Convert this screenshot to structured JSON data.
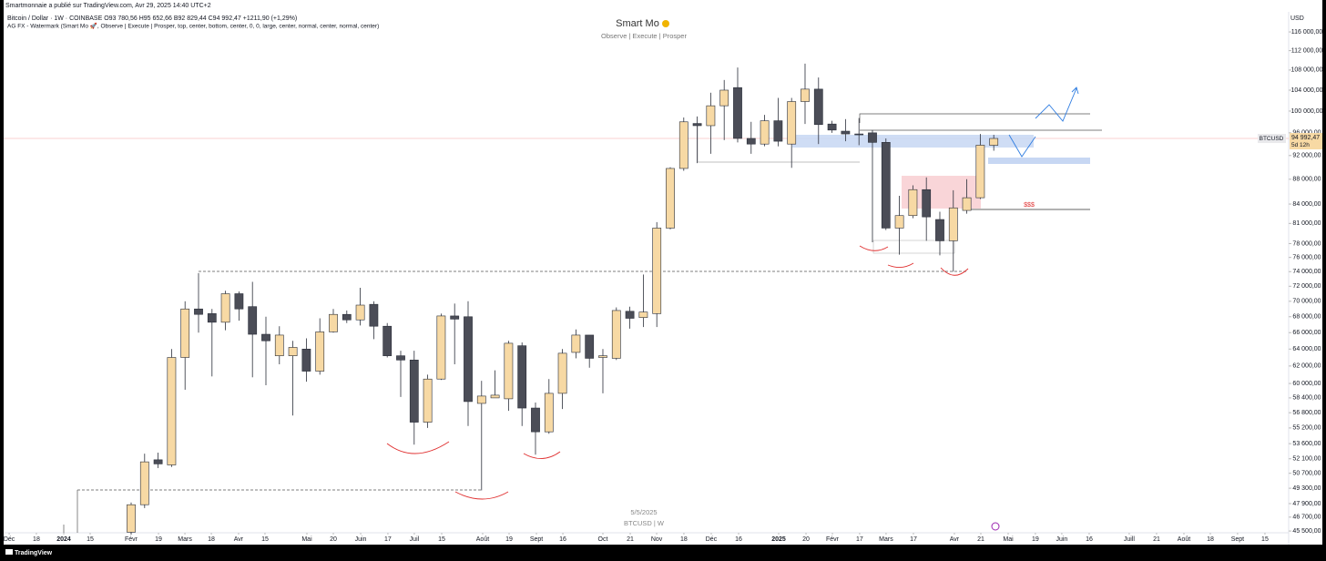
{
  "header": {
    "published": "Smartmonnaie a publié sur TradingView.com, Avr 29, 2025 14:40 UTC+2",
    "legend": "Bitcoin / Dollar · 1W · COINBASE   O93 780,56  H95 652,66  B92 829,44  C94 992,47  +1211,90 (+1,29%)",
    "indicator": "AG FX - Watermark (Smart Mo 🚀, Observe | Execute | Prosper, top, center, bottom, center, 0, 0, large, center, normal, center, normal, center)"
  },
  "watermark": {
    "title": "Smart Mo",
    "subtitle": "Observe |  Execute |  Prosper",
    "date": "5/5/2025",
    "symbol": "BTCUSD | W"
  },
  "annotation": "$$$",
  "brand": "TradingView",
  "chart_data": {
    "type": "candlestick",
    "currency": "USD",
    "log_scale": true,
    "grid": false,
    "up_color": "#f7d9a4",
    "down_color": "#4b4d57",
    "x": [
      0,
      1,
      2,
      3,
      4,
      5,
      6,
      7,
      8,
      9,
      10,
      11,
      12,
      13,
      14,
      15,
      16,
      17,
      18,
      19,
      20,
      21,
      22,
      23,
      24,
      25,
      26,
      27,
      28,
      29,
      30,
      31,
      32,
      33,
      34,
      35,
      36,
      37,
      38,
      39,
      40,
      41,
      42,
      43,
      44,
      45,
      46,
      47,
      48,
      49,
      50,
      51,
      52,
      53,
      54,
      55,
      56,
      57,
      58,
      59,
      60,
      61,
      62,
      63,
      64
    ],
    "open": [
      45400,
      47800,
      52000,
      51500,
      63000,
      69000,
      68400,
      67300,
      71000,
      69300,
      65800,
      63200,
      63200,
      64000,
      61400,
      66100,
      68300,
      67600,
      69600,
      66800,
      63200,
      62700,
      55800,
      60500,
      68100,
      68000,
      57800,
      58400,
      58300,
      64400,
      57300,
      54800,
      58900,
      63600,
      65700,
      63000,
      62900,
      68700,
      67900,
      68400,
      80300,
      89800,
      97700,
      97300,
      101000,
      104500,
      95000,
      94000,
      98200,
      94000,
      101800,
      104200,
      97600,
      96300,
      95800,
      96000,
      94300,
      80300,
      82200,
      86300,
      81600,
      78400,
      83000,
      85000,
      93780.56
    ],
    "high": [
      48000,
      52600,
      52700,
      64000,
      70000,
      73800,
      69000,
      71400,
      71300,
      72600,
      68000,
      66800,
      65000,
      65300,
      67800,
      69000,
      68800,
      71800,
      70000,
      67200,
      63800,
      63800,
      61000,
      68400,
      69700,
      70000,
      60300,
      61500,
      65000,
      64800,
      57900,
      60500,
      64000,
      66400,
      65700,
      64000,
      69200,
      69300,
      73600,
      81200,
      90000,
      98800,
      99000,
      103500,
      106000,
      108500,
      98000,
      99300,
      102500,
      102500,
      109300,
      106500,
      98200,
      98500,
      98700,
      96500,
      95000,
      85300,
      87000,
      88300,
      82800,
      86200,
      88000,
      95800,
      95652.66
    ],
    "low": [
      45200,
      47500,
      51200,
      51300,
      59300,
      66000,
      60800,
      66300,
      67500,
      60700,
      59800,
      62200,
      56500,
      60200,
      61000,
      66000,
      67200,
      66900,
      65200,
      63000,
      58500,
      53500,
      55200,
      60400,
      62200,
      55400,
      49100,
      58400,
      57000,
      55400,
      52500,
      54600,
      57200,
      62900,
      61800,
      58900,
      62700,
      66500,
      66700,
      66700,
      80100,
      89400,
      90700,
      92300,
      94700,
      94300,
      92300,
      93600,
      93600,
      89900,
      97600,
      94000,
      96000,
      94500,
      93800,
      78200,
      80000,
      76400,
      81800,
      78400,
      76300,
      74000,
      82500,
      84800,
      92829.44
    ],
    "close": [
      47800,
      51800,
      51600,
      63000,
      69000,
      68300,
      67300,
      71000,
      69000,
      65800,
      65000,
      65700,
      64200,
      61400,
      66100,
      68300,
      67600,
      69500,
      66800,
      63200,
      62700,
      55800,
      60500,
      68100,
      67700,
      58000,
      58600,
      58700,
      64700,
      57300,
      54800,
      58900,
      63500,
      65700,
      62900,
      63200,
      68800,
      67800,
      68600,
      80300,
      89800,
      98000,
      97300,
      101000,
      104000,
      95000,
      94000,
      98200,
      94500,
      101800,
      104200,
      97500,
      96500,
      95800,
      95700,
      94300,
      80300,
      82200,
      86300,
      82000,
      78400,
      83400,
      85000,
      93800,
      94992.47
    ],
    "xlim": [
      -9.73,
      85.88
    ],
    "xticks": [
      {
        "value": -9.05,
        "label": "Déc"
      },
      {
        "value": -7.03,
        "label": "18"
      },
      {
        "value": -5.0,
        "label": "2024"
      },
      {
        "value": -3.04,
        "label": "15"
      },
      {
        "value": 0,
        "label": "Févr"
      },
      {
        "value": 2.03,
        "label": "19"
      },
      {
        "value": 3.99,
        "label": "Mars"
      },
      {
        "value": 5.95,
        "label": "18"
      },
      {
        "value": 7.97,
        "label": "Avr"
      },
      {
        "value": 9.93,
        "label": "15"
      },
      {
        "value": 13.04,
        "label": "Mai"
      },
      {
        "value": 15.0,
        "label": "20"
      },
      {
        "value": 17.03,
        "label": "Juin"
      },
      {
        "value": 19.05,
        "label": "17"
      },
      {
        "value": 21.01,
        "label": "Juil"
      },
      {
        "value": 23.04,
        "label": "15"
      },
      {
        "value": 26.08,
        "label": "Août"
      },
      {
        "value": 28.04,
        "label": "19"
      },
      {
        "value": 30.07,
        "label": "Sept"
      },
      {
        "value": 32.03,
        "label": "16"
      },
      {
        "value": 35.0,
        "label": "Oct"
      },
      {
        "value": 37.03,
        "label": "21"
      },
      {
        "value": 38.99,
        "label": "Nov"
      },
      {
        "value": 41.01,
        "label": "18"
      },
      {
        "value": 43.04,
        "label": "Déc"
      },
      {
        "value": 45.07,
        "label": "16"
      },
      {
        "value": 48.04,
        "label": "2025"
      },
      {
        "value": 50.07,
        "label": "20"
      },
      {
        "value": 52.03,
        "label": "Févr"
      },
      {
        "value": 54.05,
        "label": "17"
      },
      {
        "value": 56.01,
        "label": "Mars"
      },
      {
        "value": 58.04,
        "label": "17"
      },
      {
        "value": 61.08,
        "label": "Avr"
      },
      {
        "value": 63.04,
        "label": "21"
      },
      {
        "value": 65.07,
        "label": "Mai"
      },
      {
        "value": 67.09,
        "label": "19"
      },
      {
        "value": 69.05,
        "label": "Juin"
      },
      {
        "value": 71.08,
        "label": "16"
      },
      {
        "value": 74.05,
        "label": "Juill"
      },
      {
        "value": 76.08,
        "label": "21"
      },
      {
        "value": 78.11,
        "label": "Août"
      },
      {
        "value": 80.07,
        "label": "18"
      },
      {
        "value": 82.09,
        "label": "Sept"
      },
      {
        "value": 84.12,
        "label": "15"
      }
    ],
    "ylim": [
      45350,
      120450
    ],
    "yticks": [
      {
        "value": 116000,
        "label": "116 000,00"
      },
      {
        "value": 112000,
        "label": "112 000,00"
      },
      {
        "value": 108000,
        "label": "108 000,00"
      },
      {
        "value": 104000,
        "label": "104 000,00"
      },
      {
        "value": 100000,
        "label": "100 000,00"
      },
      {
        "value": 96000,
        "label": "96 000,00"
      },
      {
        "value": 92000,
        "label": "92 000,00"
      },
      {
        "value": 88000,
        "label": "88 000,00"
      },
      {
        "value": 84000,
        "label": "84 000,00"
      },
      {
        "value": 81000,
        "label": "81 000,00"
      },
      {
        "value": 78000,
        "label": "78 000,00"
      },
      {
        "value": 76000,
        "label": "76 000,00"
      },
      {
        "value": 74000,
        "label": "74 000,00"
      },
      {
        "value": 72000,
        "label": "72 000,00"
      },
      {
        "value": 70000,
        "label": "70 000,00"
      },
      {
        "value": 68000,
        "label": "68 000,00"
      },
      {
        "value": 66000,
        "label": "66 000,00"
      },
      {
        "value": 64000,
        "label": "64 000,00"
      },
      {
        "value": 62000,
        "label": "62 000,00"
      },
      {
        "value": 60000,
        "label": "60 000,00"
      },
      {
        "value": 58400,
        "label": "58 400,00"
      },
      {
        "value": 56800,
        "label": "56 800,00"
      },
      {
        "value": 55200,
        "label": "55 200,00"
      },
      {
        "value": 53600,
        "label": "53 600,00"
      },
      {
        "value": 52100,
        "label": "52 100,00"
      },
      {
        "value": 50700,
        "label": "50 700,00"
      },
      {
        "value": 49300,
        "label": "49 300,00"
      },
      {
        "value": 47900,
        "label": "47 900,00"
      },
      {
        "value": 46700,
        "label": "46 700,00"
      },
      {
        "value": 45500,
        "label": "45 500,00"
      }
    ],
    "price_tag": {
      "symbol": "BTCUSD",
      "value": 94992.47,
      "label": "94 992,47",
      "countdown": "5d 12h"
    }
  }
}
